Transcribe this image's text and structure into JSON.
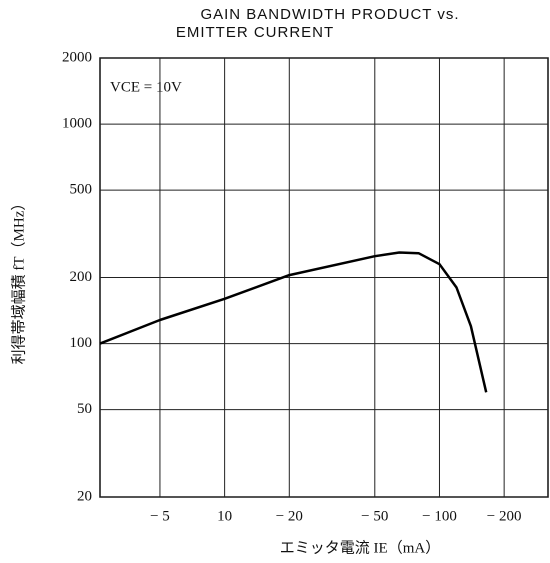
{
  "chart_data": {
    "type": "line",
    "title": [
      "GAIN  BANDWIDTH  PRODUCT  vs.",
      "EMITTER  CURRENT"
    ],
    "annotation": "VCE = 10V",
    "ylabel": "利得帯域幅積  fT（MHz）",
    "xlabel": "エミッタ電流  IE（mA）",
    "log_x": true,
    "log_y": true,
    "grid": true,
    "x": [
      2.63,
      5,
      10,
      20,
      50,
      65,
      80,
      100,
      120,
      140,
      165
    ],
    "series": [
      {
        "name": "fT",
        "color": "#000000",
        "values": [
          100,
          128,
          160,
          205,
          250,
          260,
          258,
          230,
          180,
          120,
          60
        ]
      }
    ],
    "xlim": [
      2.63,
      320
    ],
    "xticks": [
      {
        "value": 5,
        "label": "− 5"
      },
      10,
      {
        "value": 20,
        "label": "− 20"
      },
      {
        "value": 50,
        "label": "− 50"
      },
      {
        "value": 100,
        "label": "− 100"
      },
      {
        "value": 200,
        "label": "− 200"
      }
    ],
    "ylim": [
      20,
      2000
    ],
    "yticks": [
      20,
      50,
      100,
      200,
      500,
      1000,
      2000
    ]
  }
}
